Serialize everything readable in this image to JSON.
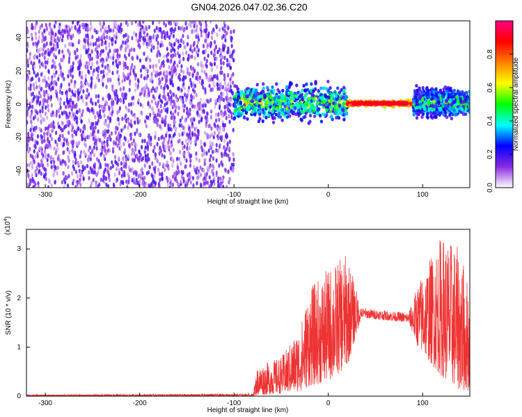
{
  "title": "GN04.2026.047.02.36.C20",
  "chart_data": [
    {
      "type": "heatmap",
      "xlabel": "Height of straight line (km)",
      "ylabel": "Frequency (Hz)",
      "xlim": [
        -320,
        150
      ],
      "ylim": [
        -50,
        50
      ],
      "xticks": [
        -300,
        -200,
        -100,
        0,
        100
      ],
      "yticks": [
        -40,
        -20,
        0,
        20,
        40
      ],
      "grid": false,
      "colorbar": {
        "label": "Normalized spectral amplitude",
        "range": [
          0,
          1
        ],
        "ticks": [
          "0.0",
          "0.2",
          "0.4",
          "0.6",
          "0.8"
        ],
        "colors": [
          "#ffffff",
          "#8a2be2",
          "#0000ff",
          "#00ffff",
          "#00ff00",
          "#ffff00",
          "#ff8000",
          "#ff0000",
          "#ff0080"
        ]
      },
      "regions": [
        {
          "x": [
            -320,
            -100
          ],
          "description_level": 0.15,
          "freq_range": [
            -50,
            50
          ]
        },
        {
          "x": [
            -100,
            20
          ],
          "description_level": 0.35,
          "freq_range": [
            -8,
            10
          ]
        },
        {
          "x": [
            20,
            90
          ],
          "description_level": 0.9,
          "freq_range": [
            -1,
            2
          ]
        },
        {
          "x": [
            90,
            150
          ],
          "description_level": 0.3,
          "freq_range": [
            -6,
            8
          ]
        }
      ]
    },
    {
      "type": "line",
      "xlabel": "Height of straight line (km)",
      "ylabel": "SNR (10 * v/v)",
      "yscale_note": "(x10",
      "yscale_exp": "4",
      "xlim": [
        -320,
        150
      ],
      "ylim": [
        0,
        3.4
      ],
      "xticks": [
        -300,
        -200,
        -100,
        0,
        100
      ],
      "yticks": [
        0,
        1,
        2,
        3
      ],
      "grid": false,
      "color": "#ee3333",
      "envelope": [
        {
          "x": -320,
          "low": 0.0,
          "high": 0.03
        },
        {
          "x": -80,
          "low": 0.0,
          "high": 0.05
        },
        {
          "x": -75,
          "low": 0.02,
          "high": 0.6
        },
        {
          "x": -50,
          "low": 0.05,
          "high": 0.8
        },
        {
          "x": -30,
          "low": 0.1,
          "high": 1.4
        },
        {
          "x": -20,
          "low": 0.2,
          "high": 2.2
        },
        {
          "x": 0,
          "low": 0.3,
          "high": 2.6
        },
        {
          "x": 20,
          "low": 0.6,
          "high": 2.9
        },
        {
          "x": 35,
          "low": 1.6,
          "high": 1.8
        },
        {
          "x": 60,
          "low": 1.55,
          "high": 1.75
        },
        {
          "x": 85,
          "low": 1.5,
          "high": 1.7
        },
        {
          "x": 95,
          "low": 1.0,
          "high": 2.3
        },
        {
          "x": 120,
          "low": 0.4,
          "high": 3.3
        },
        {
          "x": 140,
          "low": 0.1,
          "high": 3.0
        },
        {
          "x": 150,
          "low": 0.1,
          "high": 2.2
        }
      ]
    }
  ]
}
